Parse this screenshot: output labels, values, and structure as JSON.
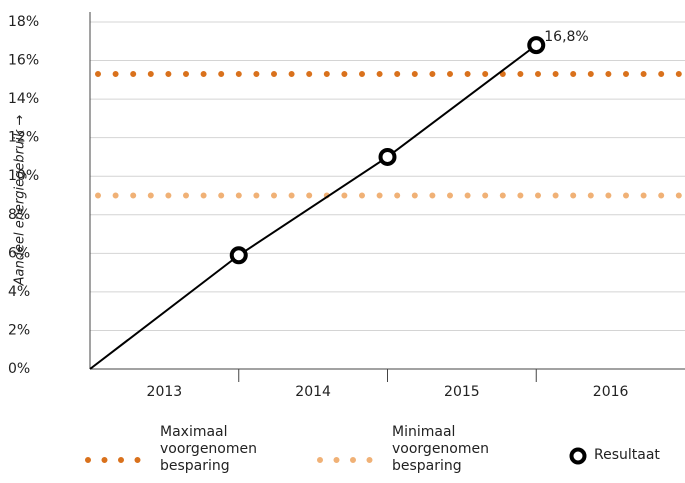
{
  "chart_data": {
    "type": "line",
    "y_label": "Aandeel energiegebruik →",
    "categories": [
      "2013",
      "2014",
      "2015",
      "2016"
    ],
    "ylim": [
      0,
      18
    ],
    "yticks": [
      {
        "value": 0,
        "label": "0%"
      },
      {
        "value": 2,
        "label": "2%"
      },
      {
        "value": 4,
        "label": "4%"
      },
      {
        "value": 6,
        "label": "6%"
      },
      {
        "value": 8,
        "label": "8%"
      },
      {
        "value": 10,
        "label": "10%"
      },
      {
        "value": 12,
        "label": "12%"
      },
      {
        "value": 14,
        "label": "14%"
      },
      {
        "value": 16,
        "label": "16%"
      },
      {
        "value": 18,
        "label": "18%"
      }
    ],
    "grid": true,
    "series": [
      {
        "name": "Maximaal voorgenomen besparing",
        "color": "#d9711c",
        "style": "dotted",
        "value": 15.3
      },
      {
        "name": "Minimaal voorgenomen besparing",
        "color": "#f0b176",
        "style": "dotted",
        "value": 9
      },
      {
        "name": "Resultaat",
        "color": "#000000",
        "style": "line",
        "values": [
          0,
          5.9,
          11,
          16.8
        ],
        "markers": [
          false,
          true,
          true,
          true
        ],
        "value_labels": [
          null,
          null,
          null,
          "16,8%"
        ]
      }
    ]
  }
}
